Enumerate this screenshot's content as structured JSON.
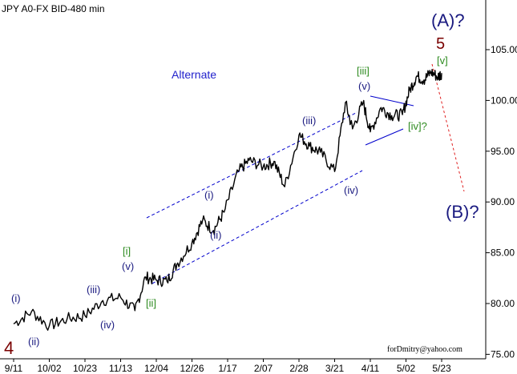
{
  "header": {
    "symbol": "JPY A0-FX BID-480 min"
  },
  "chart_data": {
    "type": "line",
    "title": "JPY A0-FX BID-480 min",
    "ylim": [
      75,
      110
    ],
    "yticks": [
      75.0,
      80.0,
      85.0,
      90.0,
      95.0,
      100.0,
      105.0
    ],
    "ytick_labels": [
      "75.00",
      "80.00",
      "85.00",
      "90.00",
      "95.00",
      "100.00",
      "105.00"
    ],
    "xtick_labels": [
      "9/11",
      "10/02",
      "10/23",
      "11/13",
      "12/04",
      "12/26",
      "1/17",
      "2/07",
      "2/28",
      "3/21",
      "4/11",
      "5/02",
      "5/23"
    ],
    "grid": false,
    "series": [
      {
        "x": [
          0.0,
          0.5,
          1.0,
          1.5,
          2.0,
          2.5,
          3.0,
          3.4,
          3.7,
          4.0,
          4.3,
          4.6,
          5.0,
          5.3,
          5.6,
          5.9,
          6.3,
          6.6,
          7.0,
          7.3,
          7.6,
          8.0,
          8.3,
          8.6,
          9.0,
          9.3,
          9.5,
          9.8,
          10.0,
          10.3,
          10.6,
          10.9,
          11.1,
          11.3,
          11.5,
          11.7,
          11.9,
          12.0
        ],
        "values": [
          78.0,
          79.2,
          77.8,
          78.5,
          78.8,
          80.3,
          80.6,
          79.3,
          82.6,
          82.3,
          82.2,
          84.0,
          86.0,
          88.2,
          87.2,
          89.0,
          93.0,
          94.1,
          93.5,
          94.0,
          91.5,
          96.6,
          95.5,
          94.9,
          93.0,
          99.8,
          97.2,
          99.8,
          96.9,
          99.3,
          98.5,
          98.6,
          101.0,
          102.4,
          102.0,
          102.8,
          102.3,
          102.7
        ]
      }
    ],
    "labels": {
      "alternate": "Alternate",
      "A": "(A)?",
      "five_red": "5",
      "v_green_top": "[v]",
      "iii_green": "[iii]",
      "v_blue_top": "(v)",
      "iv_green": "[iv]?",
      "iii_blue_mid": "(iii)",
      "iv_blue_mid": "(iv)",
      "B": "(B)?",
      "i_blue_mid": "(i)",
      "ii_blue_mid": "(ii)",
      "i_green": "[i]",
      "v_blue_low": "(v)",
      "ii_green": "[ii]",
      "iii_blue_low": "(iii)",
      "iv_blue_low": "(iv)",
      "i_blue_low": "(i)",
      "ii_blue_low": "(ii)",
      "four_red": "4"
    },
    "footer": "forDmitry@yahoo.com",
    "colors": {
      "price": "#000000",
      "channel": "#0000cc",
      "wave_blue": "#1a1a80",
      "wave_green": "#2e8b20",
      "wave_red": "#7a0000",
      "projection": "#e02020"
    }
  }
}
